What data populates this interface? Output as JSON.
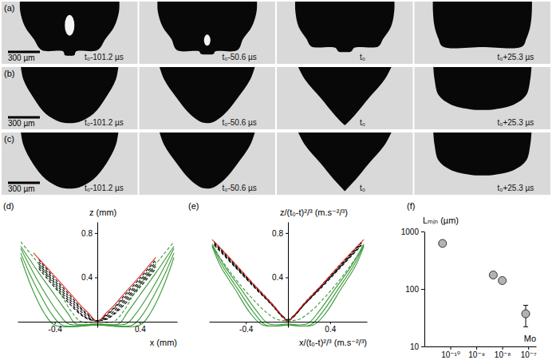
{
  "photo_panels": [
    {
      "letter": "(a)",
      "scale_bar": "300 µm",
      "frame_times": [
        "t₀-101.2 µs",
        "t₀-50.6 µs",
        "t₀",
        "t₀+25.3 µs"
      ]
    },
    {
      "letter": "(b)",
      "scale_bar": "300 µm",
      "frame_times": [
        "t₀-101.2 µs",
        "t₀-50.6 µs",
        "t₀",
        "t₀+25.3 µs"
      ]
    },
    {
      "letter": "(c)",
      "scale_bar": "300 µm",
      "frame_times": [
        "t₀-101.2 µs",
        "t₀-50.6 µs",
        "t₀",
        "t₀+25.3 µs"
      ]
    }
  ],
  "chart_data": [
    {
      "type": "line",
      "panel": "(d)",
      "xlabel": "x (mm)",
      "ylabel": "z (mm)",
      "xlim": [
        -0.75,
        0.75
      ],
      "ylim": [
        -0.05,
        0.9
      ],
      "xticks": [
        -0.4,
        0.4
      ],
      "yticks": [
        0.4,
        0.8
      ],
      "series": [
        {
          "color": "#000000",
          "line_style": "dashed",
          "x": [
            -0.55,
            -0.4,
            -0.25,
            -0.15,
            -0.08,
            0,
            0.08,
            0.15,
            0.25,
            0.4,
            0.55
          ],
          "values": [
            0.48,
            0.31,
            0.15,
            0.06,
            0.02,
            0.01,
            0.02,
            0.06,
            0.15,
            0.31,
            0.48
          ]
        },
        {
          "color": "#000000",
          "line_style": "dashed",
          "x": [
            -0.55,
            -0.4,
            -0.25,
            -0.15,
            -0.08,
            0,
            0.08,
            0.15,
            0.25,
            0.4,
            0.55
          ],
          "values": [
            0.5,
            0.33,
            0.17,
            0.07,
            0.025,
            0.01,
            0.025,
            0.07,
            0.17,
            0.33,
            0.5
          ]
        },
        {
          "color": "#000000",
          "line_style": "dashed",
          "x": [
            -0.55,
            -0.4,
            -0.25,
            -0.15,
            -0.08,
            0,
            0.08,
            0.15,
            0.25,
            0.4,
            0.55
          ],
          "values": [
            0.52,
            0.35,
            0.19,
            0.09,
            0.035,
            0.01,
            0.035,
            0.09,
            0.19,
            0.35,
            0.52
          ]
        },
        {
          "color": "#000000",
          "line_style": "dashed",
          "x": [
            -0.55,
            -0.4,
            -0.25,
            -0.15,
            -0.08,
            0,
            0.08,
            0.15,
            0.25,
            0.4,
            0.55
          ],
          "values": [
            0.54,
            0.37,
            0.21,
            0.11,
            0.05,
            0.01,
            0.05,
            0.11,
            0.21,
            0.37,
            0.54
          ]
        },
        {
          "color": "#000000",
          "line_style": "dashed",
          "x": [
            -0.55,
            -0.4,
            -0.25,
            -0.15,
            -0.08,
            0,
            0.08,
            0.15,
            0.25,
            0.4,
            0.55
          ],
          "values": [
            0.56,
            0.39,
            0.23,
            0.12,
            0.06,
            0.005,
            0.06,
            0.12,
            0.23,
            0.39,
            0.56
          ]
        },
        {
          "color": "#e0312b",
          "line_style": "solid",
          "x": [
            -0.6,
            -0.4,
            -0.25,
            -0.15,
            -0.08,
            0,
            0.08,
            0.15,
            0.25,
            0.4,
            0.55
          ],
          "values": [
            0.62,
            0.41,
            0.25,
            0.14,
            0.075,
            0,
            0.075,
            0.14,
            0.25,
            0.41,
            0.58
          ]
        },
        {
          "color": "#3a9a3a",
          "line_style": "dashed",
          "x": [
            -0.72,
            -0.5,
            -0.35,
            -0.25,
            -0.15,
            0,
            0.15,
            0.25,
            0.35,
            0.5,
            0.72
          ],
          "values": [
            0.72,
            0.46,
            0.26,
            0.1,
            0,
            0,
            0,
            0.1,
            0.26,
            0.46,
            0.72
          ]
        },
        {
          "color": "#3a9a3a",
          "line_style": "solid",
          "x": [
            -0.72,
            -0.55,
            -0.4,
            -0.28,
            -0.2,
            0,
            0.2,
            0.28,
            0.4,
            0.55,
            0.72
          ],
          "values": [
            0.68,
            0.44,
            0.24,
            0.08,
            -0.02,
            -0.02,
            -0.02,
            0.08,
            0.24,
            0.44,
            0.68
          ]
        },
        {
          "color": "#3a9a3a",
          "line_style": "solid",
          "x": [
            -0.72,
            -0.6,
            -0.48,
            -0.36,
            -0.27,
            0,
            0.27,
            0.36,
            0.48,
            0.6,
            0.72
          ],
          "values": [
            0.66,
            0.44,
            0.24,
            0.07,
            -0.02,
            -0.02,
            -0.02,
            0.07,
            0.24,
            0.44,
            0.66
          ]
        },
        {
          "color": "#3a9a3a",
          "line_style": "solid",
          "x": [
            -0.72,
            -0.64,
            -0.54,
            -0.43,
            -0.33,
            0,
            0.33,
            0.43,
            0.54,
            0.64,
            0.72
          ],
          "values": [
            0.62,
            0.44,
            0.25,
            0.07,
            -0.03,
            -0.03,
            -0.03,
            0.07,
            0.25,
            0.44,
            0.62
          ]
        },
        {
          "color": "#3a9a3a",
          "line_style": "solid",
          "x": [
            -0.72,
            -0.67,
            -0.6,
            -0.5,
            -0.4,
            0,
            0.4,
            0.5,
            0.6,
            0.67,
            0.72
          ],
          "values": [
            0.58,
            0.44,
            0.27,
            0.08,
            -0.03,
            -0.03,
            -0.03,
            0.08,
            0.27,
            0.44,
            0.58
          ]
        }
      ]
    },
    {
      "type": "line",
      "panel": "(e)",
      "xlabel": "x/(t₀-t)²/³ (m.s⁻²/³)",
      "ylabel": "z/(t₀-t)²/³ (m.s⁻²/³)",
      "xlim": [
        -0.75,
        0.75
      ],
      "ylim": [
        -0.05,
        0.9
      ],
      "xticks": [
        -0.4,
        0.4
      ],
      "yticks": [
        0.4,
        0.8
      ],
      "series": [
        {
          "color": "#000000",
          "line_style": "dashed",
          "x": [
            -0.7,
            -0.5,
            -0.3,
            -0.15,
            -0.06,
            0,
            0.06,
            0.15,
            0.3,
            0.5,
            0.7
          ],
          "values": [
            0.69,
            0.49,
            0.29,
            0.15,
            0.06,
            0.02,
            0.06,
            0.15,
            0.29,
            0.49,
            0.69
          ]
        },
        {
          "color": "#000000",
          "line_style": "dashed",
          "x": [
            -0.7,
            -0.5,
            -0.3,
            -0.15,
            -0.06,
            0,
            0.06,
            0.15,
            0.3,
            0.5,
            0.7
          ],
          "values": [
            0.7,
            0.5,
            0.3,
            0.15,
            0.055,
            0.015,
            0.055,
            0.15,
            0.3,
            0.5,
            0.7
          ]
        },
        {
          "color": "#000000",
          "line_style": "dashed",
          "x": [
            -0.7,
            -0.5,
            -0.3,
            -0.15,
            -0.06,
            0,
            0.06,
            0.15,
            0.3,
            0.5,
            0.7
          ],
          "values": [
            0.71,
            0.5,
            0.3,
            0.15,
            0.05,
            0.01,
            0.05,
            0.15,
            0.3,
            0.5,
            0.71
          ]
        },
        {
          "color": "#000000",
          "line_style": "dashed",
          "x": [
            -0.7,
            -0.5,
            -0.3,
            -0.15,
            -0.06,
            0,
            0.06,
            0.15,
            0.3,
            0.5,
            0.7
          ],
          "values": [
            0.72,
            0.51,
            0.31,
            0.16,
            0.05,
            0.01,
            0.05,
            0.16,
            0.31,
            0.51,
            0.72
          ]
        },
        {
          "color": "#000000",
          "line_style": "dashed",
          "x": [
            -0.7,
            -0.5,
            -0.3,
            -0.15,
            -0.06,
            0,
            0.06,
            0.15,
            0.3,
            0.5,
            0.7
          ],
          "values": [
            0.72,
            0.52,
            0.31,
            0.16,
            0.06,
            0.005,
            0.06,
            0.16,
            0.31,
            0.52,
            0.72
          ]
        },
        {
          "color": "#e0312b",
          "line_style": "solid",
          "x": [
            -0.72,
            -0.5,
            -0.3,
            -0.15,
            -0.06,
            0,
            0.06,
            0.15,
            0.3,
            0.5,
            0.72
          ],
          "values": [
            0.74,
            0.52,
            0.31,
            0.16,
            0.06,
            0,
            0.06,
            0.16,
            0.31,
            0.52,
            0.74
          ]
        },
        {
          "color": "#3a9a3a",
          "line_style": "dashed",
          "x": [
            -0.72,
            -0.55,
            -0.35,
            -0.2,
            -0.1,
            0,
            0.1,
            0.2,
            0.35,
            0.55,
            0.72
          ],
          "values": [
            0.68,
            0.45,
            0.22,
            0.08,
            0.02,
            0.01,
            0.02,
            0.08,
            0.22,
            0.45,
            0.68
          ]
        },
        {
          "color": "#3a9a3a",
          "line_style": "solid",
          "x": [
            -0.72,
            -0.6,
            -0.45,
            -0.3,
            -0.18,
            0,
            0.18,
            0.3,
            0.45,
            0.6,
            0.72
          ],
          "values": [
            0.7,
            0.5,
            0.3,
            0.1,
            -0.02,
            -0.02,
            -0.02,
            0.1,
            0.3,
            0.5,
            0.7
          ]
        },
        {
          "color": "#3a9a3a",
          "line_style": "solid",
          "x": [
            -0.72,
            -0.62,
            -0.48,
            -0.33,
            -0.21,
            0,
            0.21,
            0.33,
            0.48,
            0.62,
            0.72
          ],
          "values": [
            0.69,
            0.5,
            0.3,
            0.09,
            -0.03,
            -0.03,
            -0.03,
            0.09,
            0.3,
            0.5,
            0.69
          ]
        },
        {
          "color": "#3a9a3a",
          "line_style": "solid",
          "x": [
            -0.72,
            -0.64,
            -0.5,
            -0.36,
            -0.24,
            0,
            0.24,
            0.36,
            0.5,
            0.64,
            0.72
          ],
          "values": [
            0.68,
            0.5,
            0.29,
            0.08,
            -0.03,
            -0.03,
            -0.03,
            0.08,
            0.29,
            0.5,
            0.68
          ]
        }
      ]
    },
    {
      "type": "scatter",
      "panel": "(f)",
      "xlabel": "Mo",
      "ylabel": "Lₘᵢₙ (µm)",
      "log": true,
      "x": [
        5e-11,
        4.5e-09,
        1e-08,
        8e-08
      ],
      "values": [
        620,
        175,
        140,
        37
      ],
      "errors": [
        null,
        null,
        null,
        15
      ],
      "color": "#b3b3b3",
      "marker": "circle",
      "xlim": [
        1e-11,
        2e-07
      ],
      "ylim": [
        10,
        1000
      ],
      "xticks": [
        {
          "value": 1e-10,
          "label": "10⁻¹⁰"
        },
        {
          "value": 1e-09,
          "label": "10⁻⁹"
        },
        {
          "value": 1e-08,
          "label": "10⁻⁸"
        },
        {
          "value": 1e-07,
          "label": "10⁻⁷"
        }
      ],
      "yticks": [
        10,
        100,
        1000
      ]
    }
  ]
}
